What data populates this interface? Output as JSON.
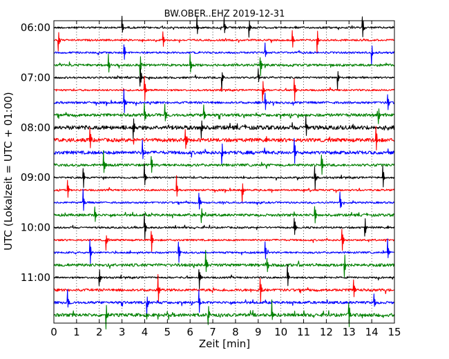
{
  "chart_data": {
    "type": "line",
    "title": "BW.OBER..EHZ 2019-12-31",
    "xlabel": "Zeit  [min]",
    "ylabel": "UTC (Lokalzeit = UTC + 01:00)",
    "xlim": [
      0,
      15
    ],
    "xticks": [
      "0",
      "1",
      "2",
      "3",
      "4",
      "5",
      "6",
      "7",
      "8",
      "9",
      "10",
      "11",
      "12",
      "13",
      "14",
      "15"
    ],
    "yticks": [
      {
        "label": "06:00",
        "row": 0
      },
      {
        "label": "07:00",
        "row": 4
      },
      {
        "label": "08:00",
        "row": 8
      },
      {
        "label": "09:00",
        "row": 12
      },
      {
        "label": "10:00",
        "row": 16
      },
      {
        "label": "11:00",
        "row": 20
      }
    ],
    "trace_colors": [
      "#000000",
      "#ff0000",
      "#0000ff",
      "#008000"
    ],
    "rows": 24,
    "row_minutes": 15,
    "vertical_gridlines": "dotted",
    "traces": [
      {
        "start": "06:00",
        "color": "#000000",
        "noise": 1,
        "events": [
          3.0,
          6.3,
          7.5,
          8.6,
          13.6
        ]
      },
      {
        "start": "06:15",
        "color": "#ff0000",
        "noise": 1,
        "events": [
          0.2,
          4.8,
          10.5,
          11.6
        ]
      },
      {
        "start": "06:30",
        "color": "#0000ff",
        "noise": 1,
        "events": [
          3.1,
          9.3,
          14.0
        ]
      },
      {
        "start": "06:45",
        "color": "#008000",
        "noise": 1.3,
        "events": [
          2.4,
          3.8,
          6.0,
          9.1
        ]
      },
      {
        "start": "07:00",
        "color": "#000000",
        "noise": 1,
        "events": [
          3.8,
          7.4,
          9.0,
          12.5
        ]
      },
      {
        "start": "07:15",
        "color": "#ff0000",
        "noise": 1,
        "events": [
          4.0,
          9.2,
          10.6
        ]
      },
      {
        "start": "07:30",
        "color": "#0000ff",
        "noise": 1.2,
        "events": [
          3.1,
          9.3,
          14.7
        ]
      },
      {
        "start": "07:45",
        "color": "#008000",
        "noise": 1.6,
        "events": [
          4.0,
          4.9,
          6.6,
          14.3
        ]
      },
      {
        "start": "08:00",
        "color": "#000000",
        "noise": 2.2,
        "events": [
          3.5,
          6.5,
          11.1
        ]
      },
      {
        "start": "08:15",
        "color": "#ff0000",
        "noise": 2,
        "events": [
          1.6,
          5.8,
          14.2
        ]
      },
      {
        "start": "08:30",
        "color": "#0000ff",
        "noise": 1.8,
        "events": [
          3.9,
          7.4,
          10.6
        ]
      },
      {
        "start": "08:45",
        "color": "#008000",
        "noise": 1.4,
        "events": [
          2.2,
          4.3,
          11.8
        ]
      },
      {
        "start": "09:00",
        "color": "#000000",
        "noise": 1,
        "events": [
          1.3,
          4.0,
          11.5,
          14.5
        ]
      },
      {
        "start": "09:15",
        "color": "#ff0000",
        "noise": 1,
        "events": [
          0.6,
          5.4,
          8.3
        ]
      },
      {
        "start": "09:30",
        "color": "#0000ff",
        "noise": 1,
        "events": [
          1.3,
          6.4,
          12.6
        ]
      },
      {
        "start": "09:45",
        "color": "#008000",
        "noise": 1.4,
        "events": [
          1.8,
          6.5,
          11.5
        ]
      },
      {
        "start": "10:00",
        "color": "#000000",
        "noise": 1,
        "events": [
          4.0,
          10.6,
          13.7
        ]
      },
      {
        "start": "10:15",
        "color": "#ff0000",
        "noise": 1,
        "events": [
          2.3,
          4.3,
          12.7
        ]
      },
      {
        "start": "10:30",
        "color": "#0000ff",
        "noise": 1,
        "events": [
          1.6,
          5.5,
          9.3,
          14.7
        ]
      },
      {
        "start": "10:45",
        "color": "#008000",
        "noise": 1.6,
        "events": [
          6.7,
          9.4,
          12.8
        ]
      },
      {
        "start": "11:00",
        "color": "#000000",
        "noise": 1,
        "events": [
          2.0,
          6.4,
          10.3
        ]
      },
      {
        "start": "11:15",
        "color": "#ff0000",
        "noise": 1.4,
        "events": [
          4.6,
          9.1,
          13.2
        ]
      },
      {
        "start": "11:30",
        "color": "#0000ff",
        "noise": 1.4,
        "events": [
          0.6,
          4.1,
          6.4,
          14.1
        ]
      },
      {
        "start": "11:45",
        "color": "#008000",
        "noise": 1.8,
        "events": [
          2.3,
          6.8,
          9.6,
          13.0
        ]
      }
    ]
  }
}
